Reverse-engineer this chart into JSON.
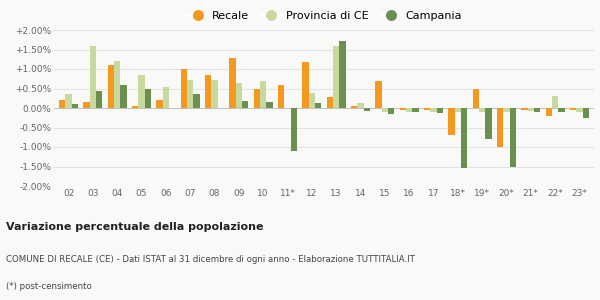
{
  "categories": [
    "02",
    "03",
    "04",
    "05",
    "06",
    "07",
    "08",
    "09",
    "10",
    "11*",
    "12",
    "13",
    "14",
    "15",
    "16",
    "17",
    "18*",
    "19*",
    "20*",
    "21*",
    "22*",
    "23*"
  ],
  "recale": [
    0.2,
    0.15,
    1.1,
    0.05,
    0.2,
    1.0,
    0.85,
    1.28,
    0.5,
    0.58,
    1.18,
    0.27,
    0.05,
    0.7,
    -0.05,
    -0.05,
    -0.7,
    0.5,
    -1.0,
    -0.05,
    -0.2,
    -0.05
  ],
  "provincia": [
    0.35,
    1.58,
    1.2,
    0.85,
    0.53,
    0.72,
    0.72,
    0.63,
    0.7,
    -0.0,
    0.38,
    1.6,
    0.13,
    -0.1,
    -0.1,
    -0.1,
    -0.1,
    -0.1,
    -0.1,
    -0.08,
    0.32,
    -0.1
  ],
  "campania": [
    0.1,
    0.43,
    0.58,
    0.48,
    0.0,
    0.36,
    0.0,
    0.18,
    0.15,
    -1.1,
    0.13,
    1.72,
    -0.08,
    -0.15,
    -0.1,
    -0.13,
    -1.55,
    -0.8,
    -1.5,
    -0.1,
    -0.1,
    -0.25
  ],
  "recale_color": "#f5981f",
  "provincia_color": "#c8d9a0",
  "campania_color": "#6b8f4e",
  "bg_color": "#f9f9f7",
  "title_bold": "Variazione percentuale della popolazione",
  "subtitle": "COMUNE DI RECALE (CE) - Dati ISTAT al 31 dicembre di ogni anno - Elaborazione TUTTITALIA.IT",
  "footnote": "(*) post-censimento",
  "ylim": [
    -2.0,
    2.0
  ],
  "yticks": [
    -2.0,
    -1.5,
    -1.0,
    -0.5,
    0.0,
    0.5,
    1.0,
    1.5,
    2.0
  ],
  "ytick_labels": [
    "-2.00%",
    "-1.50%",
    "-1.00%",
    "-0.50%",
    "0.00%",
    "+0.50%",
    "+1.00%",
    "+1.50%",
    "+2.00%"
  ]
}
